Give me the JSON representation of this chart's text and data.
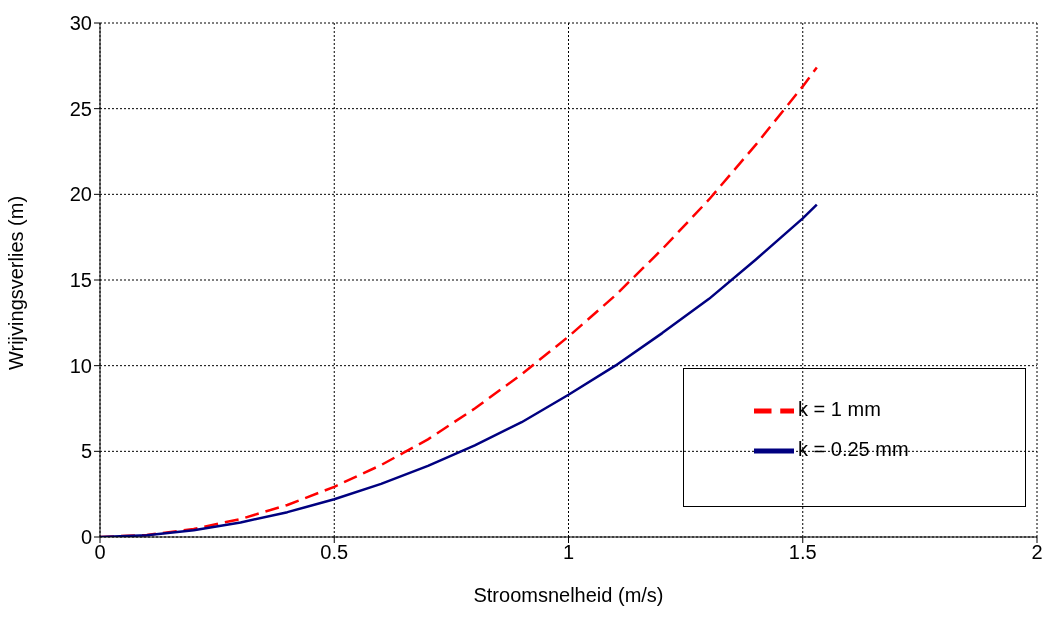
{
  "chart_data": {
    "type": "line",
    "xlabel": "Stroomsnelheid (m/s)",
    "ylabel": "Wrijvingsverlies (m)",
    "x": [
      0,
      0.1,
      0.2,
      0.3,
      0.4,
      0.5,
      0.6,
      0.7,
      0.8,
      0.9,
      1.0,
      1.1,
      1.2,
      1.3,
      1.4,
      1.5,
      1.53
    ],
    "series": [
      {
        "name": "k = 1 mm",
        "color": "#ff0000",
        "line_style": "dashed",
        "values": [
          0,
          0.12,
          0.47,
          1.05,
          1.87,
          2.93,
          4.2,
          5.7,
          7.5,
          9.5,
          11.7,
          14.1,
          16.8,
          19.7,
          22.9,
          26.3,
          27.4
        ]
      },
      {
        "name": "k = 0.25 mm",
        "color": "#000080",
        "line_style": "solid",
        "values": [
          0,
          0.1,
          0.4,
          0.85,
          1.45,
          2.2,
          3.1,
          4.15,
          5.35,
          6.7,
          8.3,
          10.0,
          11.9,
          13.9,
          16.2,
          18.6,
          19.4
        ]
      }
    ],
    "xlim": [
      0,
      2
    ],
    "xticks": [
      0,
      0.5,
      1,
      1.5,
      2
    ],
    "ylim": [
      0,
      30
    ],
    "yticks": [
      0,
      5,
      10,
      15,
      20,
      25,
      30
    ],
    "grid": true,
    "legend": "bottom right",
    "marker": "none"
  }
}
